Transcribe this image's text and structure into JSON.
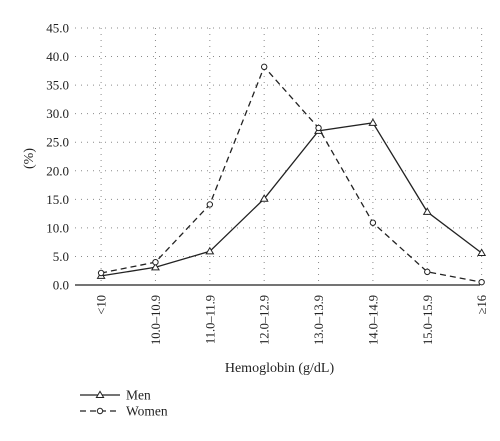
{
  "chart_data": {
    "type": "line",
    "title": "",
    "xlabel": "Hemoglobin (g/dL)",
    "ylabel": "(%)",
    "ylim": [
      0,
      45
    ],
    "yticks": [
      "0.0",
      "5.0",
      "10.0",
      "15.0",
      "20.0",
      "25.0",
      "30.0",
      "35.0",
      "40.0",
      "45.0"
    ],
    "categories": [
      "<10",
      "10.0–10.9",
      "11.0–11.9",
      "12.0–12.9",
      "13.0–13.9",
      "14.0–14.9",
      "15.0–15.9",
      "≥16"
    ],
    "grid": true,
    "legend_position": "bottom-left",
    "series": [
      {
        "name": "Men",
        "marker": "triangle",
        "linestyle": "solid",
        "values": [
          1.6,
          3.1,
          5.9,
          15.1,
          27.0,
          28.4,
          12.8,
          5.6
        ]
      },
      {
        "name": "Women",
        "marker": "circle",
        "linestyle": "dashed",
        "values": [
          2.1,
          4.0,
          14.1,
          38.2,
          27.5,
          10.9,
          2.3,
          0.5
        ]
      }
    ]
  }
}
